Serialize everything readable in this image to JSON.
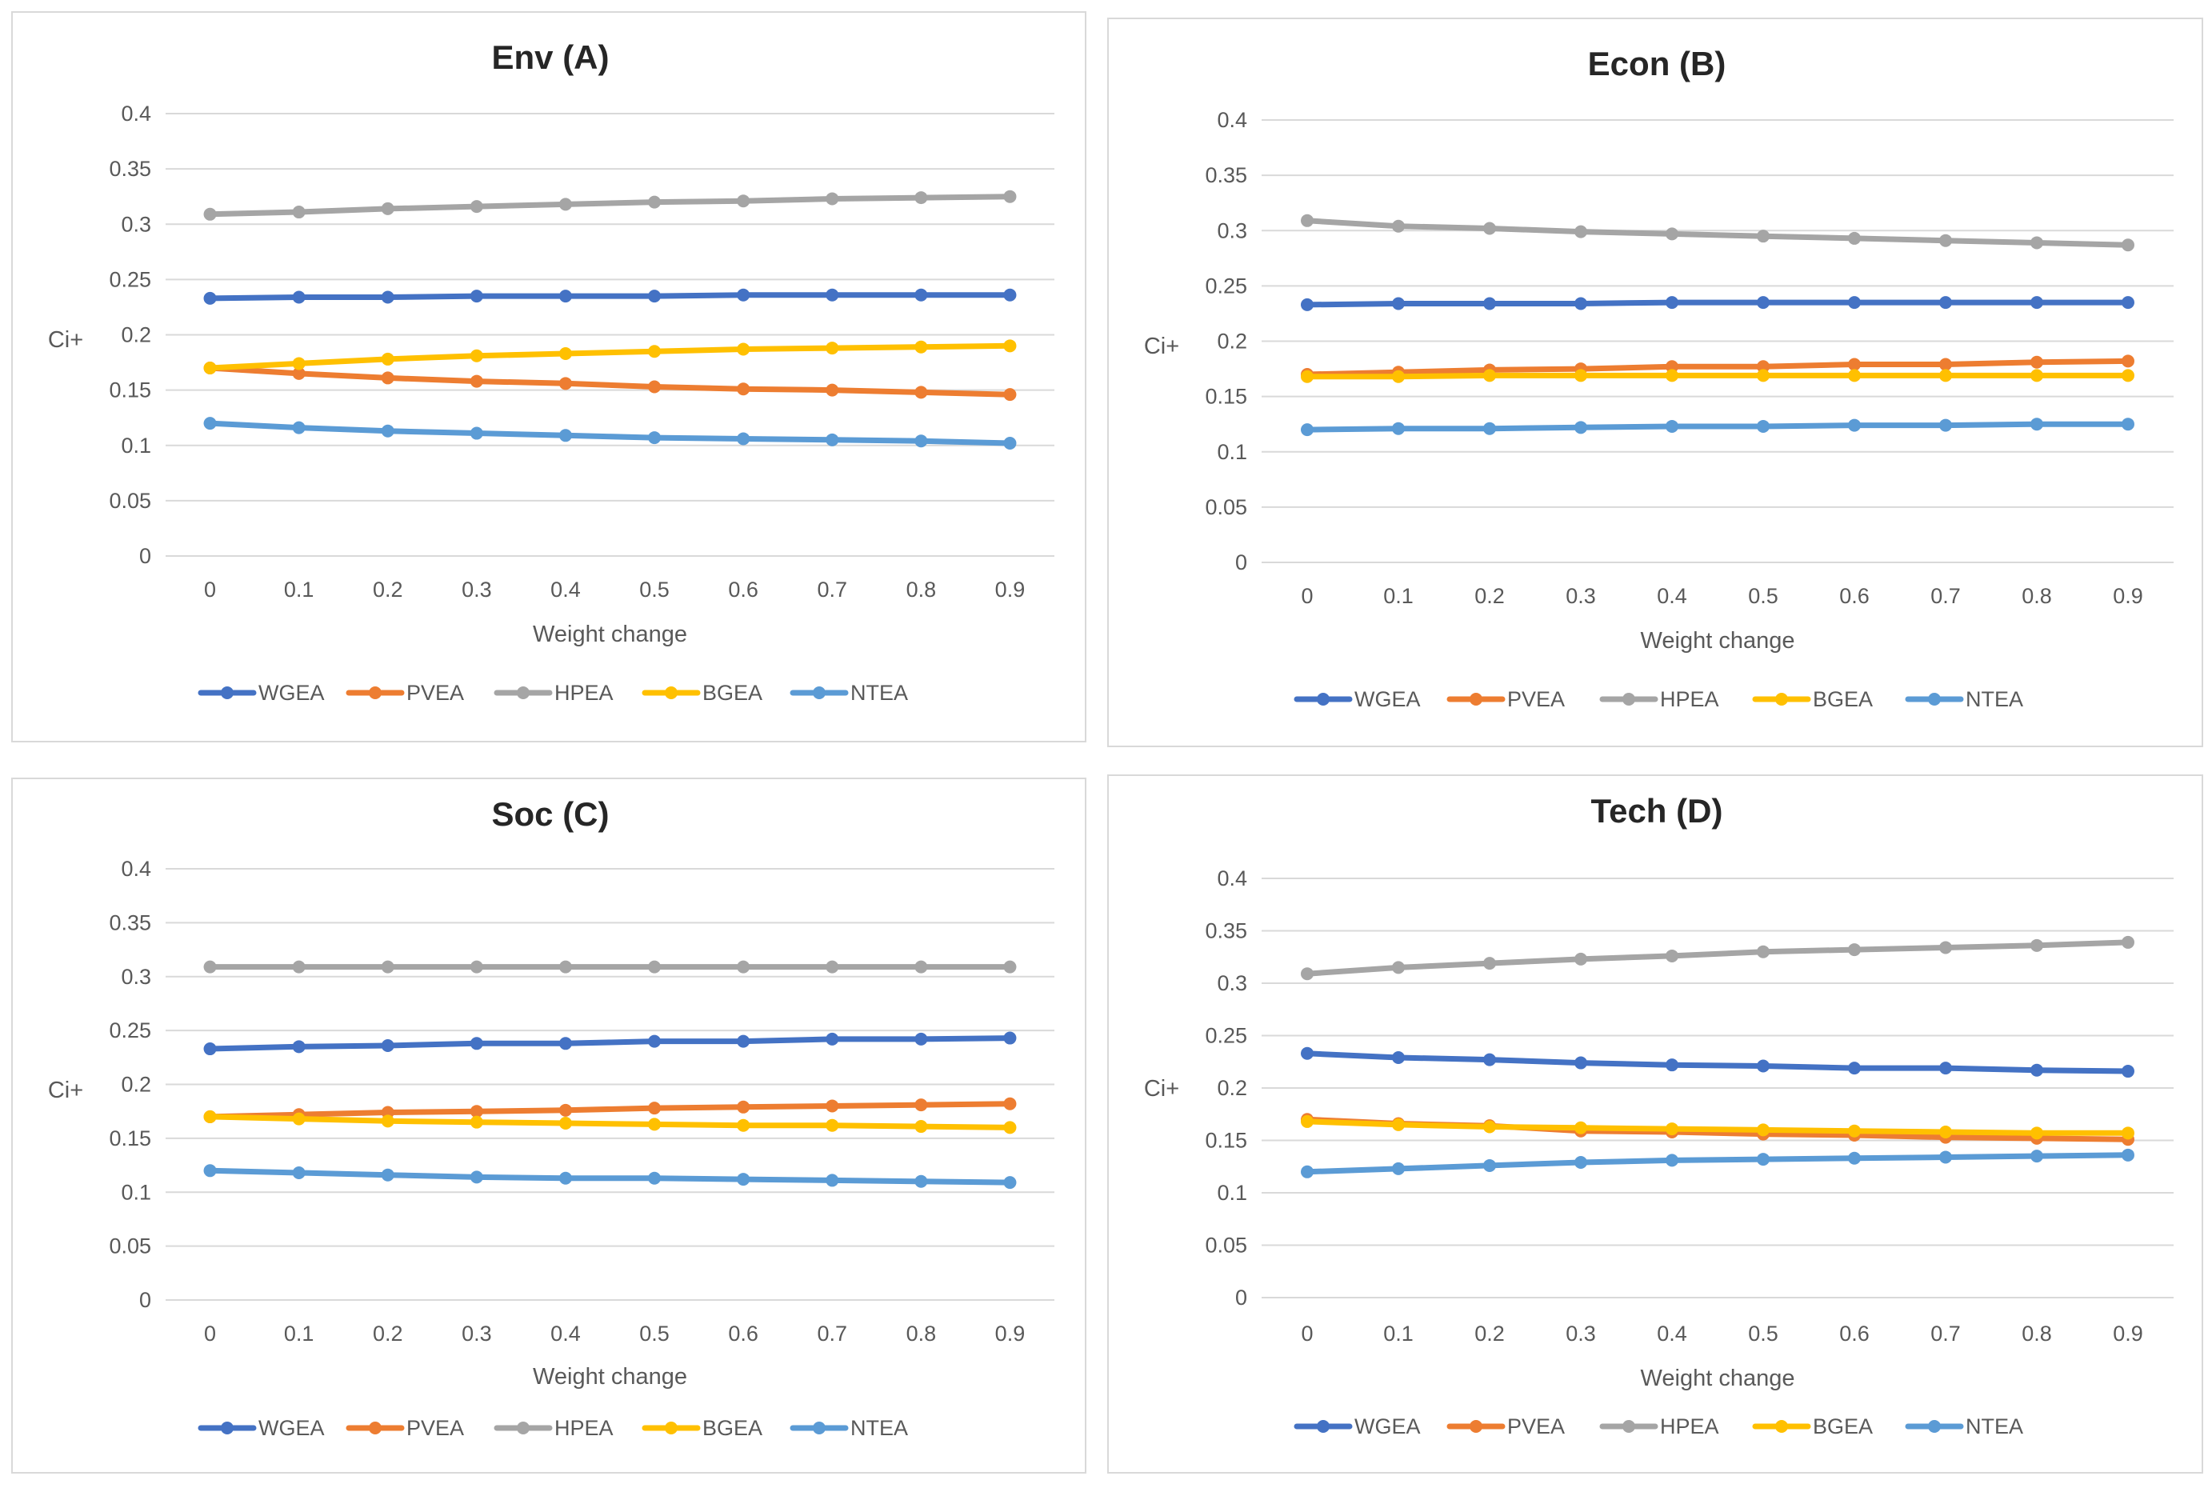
{
  "colors": {
    "WGEA": "#4472C4",
    "PVEA": "#ED7D31",
    "HPEA": "#A5A5A5",
    "BGEA": "#FFC000",
    "NTEA": "#5B9BD5",
    "gridline": "#d9d9d9",
    "text": "#595959"
  },
  "chart_data": [
    {
      "type": "line",
      "title": "Env (A)",
      "xlabel": "Weight change",
      "ylabel": "Ci+",
      "categories": [
        "0",
        "0.1",
        "0.2",
        "0.3",
        "0.4",
        "0.5",
        "0.6",
        "0.7",
        "0.8",
        "0.9"
      ],
      "yticks": [
        "0",
        "0.05",
        "0.1",
        "0.15",
        "0.2",
        "0.25",
        "0.3",
        "0.35",
        "0.4"
      ],
      "ylim": [
        0,
        0.4
      ],
      "grid": true,
      "legend_position": "bottom",
      "series": [
        {
          "name": "WGEA",
          "values": [
            0.233,
            0.234,
            0.234,
            0.235,
            0.235,
            0.235,
            0.236,
            0.236,
            0.236,
            0.236
          ]
        },
        {
          "name": "PVEA",
          "values": [
            0.17,
            0.165,
            0.161,
            0.158,
            0.156,
            0.153,
            0.151,
            0.15,
            0.148,
            0.146
          ]
        },
        {
          "name": "HPEA",
          "values": [
            0.309,
            0.311,
            0.314,
            0.316,
            0.318,
            0.32,
            0.321,
            0.323,
            0.324,
            0.325
          ]
        },
        {
          "name": "BGEA",
          "values": [
            0.17,
            0.174,
            0.178,
            0.181,
            0.183,
            0.185,
            0.187,
            0.188,
            0.189,
            0.19
          ]
        },
        {
          "name": "NTEA",
          "values": [
            0.12,
            0.116,
            0.113,
            0.111,
            0.109,
            0.107,
            0.106,
            0.105,
            0.104,
            0.102
          ]
        }
      ]
    },
    {
      "type": "line",
      "title": "Econ (B)",
      "xlabel": "Weight change",
      "ylabel": "Ci+",
      "categories": [
        "0",
        "0.1",
        "0.2",
        "0.3",
        "0.4",
        "0.5",
        "0.6",
        "0.7",
        "0.8",
        "0.9"
      ],
      "yticks": [
        "0",
        "0.05",
        "0.1",
        "0.15",
        "0.2",
        "0.25",
        "0.3",
        "0.35",
        "0.4"
      ],
      "ylim": [
        0,
        0.4
      ],
      "grid": true,
      "legend_position": "bottom",
      "series": [
        {
          "name": "WGEA",
          "values": [
            0.233,
            0.234,
            0.234,
            0.234,
            0.235,
            0.235,
            0.235,
            0.235,
            0.235,
            0.235
          ]
        },
        {
          "name": "PVEA",
          "values": [
            0.17,
            0.172,
            0.174,
            0.175,
            0.177,
            0.177,
            0.179,
            0.179,
            0.181,
            0.182
          ]
        },
        {
          "name": "HPEA",
          "values": [
            0.309,
            0.304,
            0.302,
            0.299,
            0.297,
            0.295,
            0.293,
            0.291,
            0.289,
            0.287
          ]
        },
        {
          "name": "BGEA",
          "values": [
            0.168,
            0.168,
            0.169,
            0.169,
            0.169,
            0.169,
            0.169,
            0.169,
            0.169,
            0.169
          ]
        },
        {
          "name": "NTEA",
          "values": [
            0.12,
            0.121,
            0.121,
            0.122,
            0.123,
            0.123,
            0.124,
            0.124,
            0.125,
            0.125
          ]
        }
      ]
    },
    {
      "type": "line",
      "title": "Soc (C)",
      "xlabel": "Weight change",
      "ylabel": "Ci+",
      "categories": [
        "0",
        "0.1",
        "0.2",
        "0.3",
        "0.4",
        "0.5",
        "0.6",
        "0.7",
        "0.8",
        "0.9"
      ],
      "yticks": [
        "0",
        "0.05",
        "0.1",
        "0.15",
        "0.2",
        "0.25",
        "0.3",
        "0.35",
        "0.4"
      ],
      "ylim": [
        0,
        0.4
      ],
      "grid": true,
      "legend_position": "bottom",
      "series": [
        {
          "name": "WGEA",
          "values": [
            0.233,
            0.235,
            0.236,
            0.238,
            0.238,
            0.24,
            0.24,
            0.242,
            0.242,
            0.243
          ]
        },
        {
          "name": "PVEA",
          "values": [
            0.17,
            0.172,
            0.174,
            0.175,
            0.176,
            0.178,
            0.179,
            0.18,
            0.181,
            0.182
          ]
        },
        {
          "name": "HPEA",
          "values": [
            0.309,
            0.309,
            0.309,
            0.309,
            0.309,
            0.309,
            0.309,
            0.309,
            0.309,
            0.309
          ]
        },
        {
          "name": "BGEA",
          "values": [
            0.17,
            0.168,
            0.166,
            0.165,
            0.164,
            0.163,
            0.162,
            0.162,
            0.161,
            0.16
          ]
        },
        {
          "name": "NTEA",
          "values": [
            0.12,
            0.118,
            0.116,
            0.114,
            0.113,
            0.113,
            0.112,
            0.111,
            0.11,
            0.109
          ]
        }
      ]
    },
    {
      "type": "line",
      "title": "Tech (D)",
      "xlabel": "Weight change",
      "ylabel": "Ci+",
      "categories": [
        "0",
        "0.1",
        "0.2",
        "0.3",
        "0.4",
        "0.5",
        "0.6",
        "0.7",
        "0.8",
        "0.9"
      ],
      "yticks": [
        "0",
        "0.05",
        "0.1",
        "0.15",
        "0.2",
        "0.25",
        "0.3",
        "0.35",
        "0.4"
      ],
      "ylim": [
        0,
        0.4
      ],
      "grid": true,
      "legend_position": "bottom",
      "series": [
        {
          "name": "WGEA",
          "values": [
            0.233,
            0.229,
            0.227,
            0.224,
            0.222,
            0.221,
            0.219,
            0.219,
            0.217,
            0.216
          ]
        },
        {
          "name": "PVEA",
          "values": [
            0.17,
            0.166,
            0.164,
            0.159,
            0.158,
            0.156,
            0.155,
            0.153,
            0.152,
            0.151
          ]
        },
        {
          "name": "HPEA",
          "values": [
            0.309,
            0.315,
            0.319,
            0.323,
            0.326,
            0.33,
            0.332,
            0.334,
            0.336,
            0.339
          ]
        },
        {
          "name": "BGEA",
          "values": [
            0.168,
            0.165,
            0.163,
            0.162,
            0.161,
            0.16,
            0.159,
            0.158,
            0.157,
            0.157
          ]
        },
        {
          "name": "NTEA",
          "values": [
            0.12,
            0.123,
            0.126,
            0.129,
            0.131,
            0.132,
            0.133,
            0.134,
            0.135,
            0.136
          ]
        }
      ]
    }
  ]
}
